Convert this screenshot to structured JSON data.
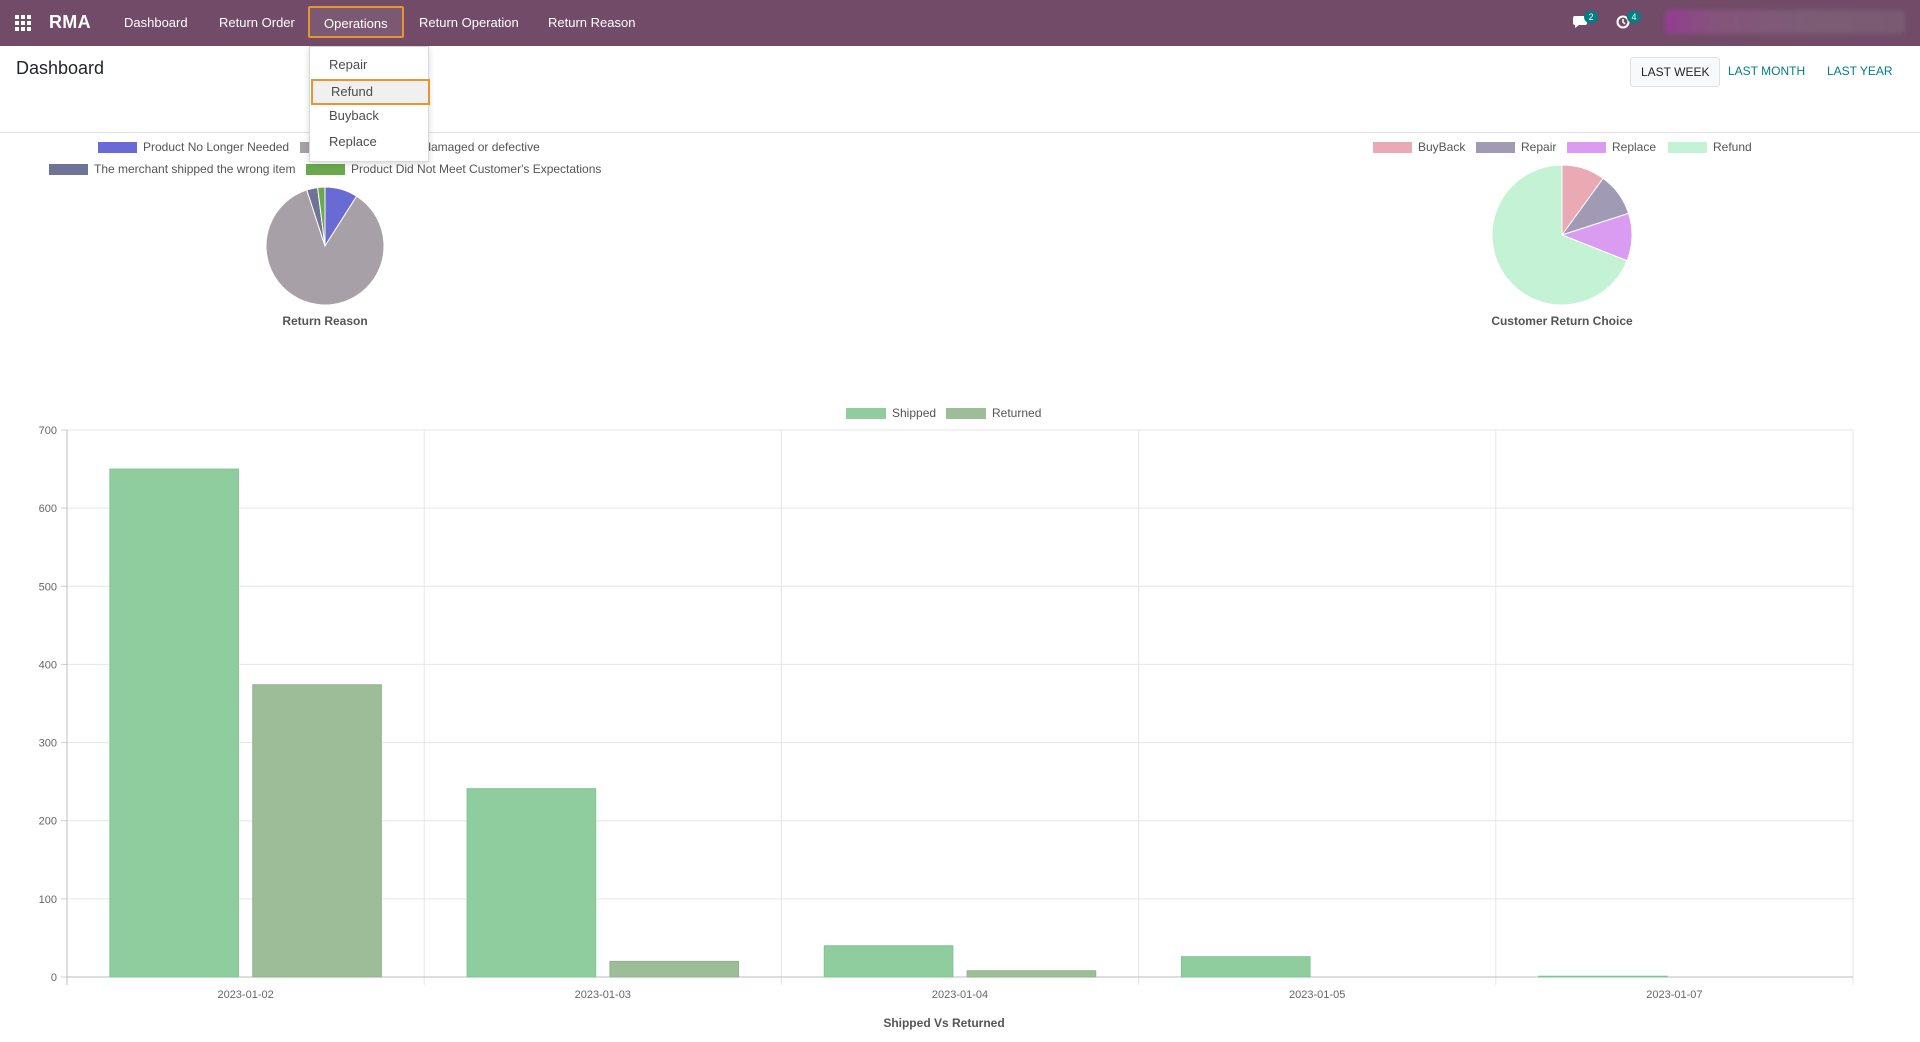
{
  "navbar": {
    "brand": "RMA",
    "items": [
      "Dashboard",
      "Return Order",
      "Operations",
      "Return Operation",
      "Return Reason"
    ],
    "messages_badge": "2",
    "activities_badge": "4"
  },
  "operations_menu": {
    "items": [
      "Repair",
      "Refund",
      "Buyback",
      "Replace"
    ],
    "highlighted": "Refund"
  },
  "control_panel": {
    "title": "Dashboard",
    "periods": [
      "LAST WEEK",
      "LAST MONTH",
      "LAST YEAR"
    ],
    "selected_period": "LAST WEEK"
  },
  "chart_data": [
    {
      "type": "pie",
      "title": "Return Reason",
      "legend": [
        {
          "label": "Product No Longer Needed",
          "color": "#6a6ad6"
        },
        {
          "label": "s damaged or defective",
          "color": "#a7a1a7"
        },
        {
          "label": "The merchant shipped the wrong item",
          "color": "#6f7396"
        },
        {
          "label": "Product Did Not Meet Customer's Expectations",
          "color": "#6aaa4e"
        }
      ],
      "values": [
        9,
        86,
        3,
        2
      ]
    },
    {
      "type": "pie",
      "title": "Customer Return Choice",
      "legend": [
        {
          "label": "BuyBack",
          "color": "#e9aab4"
        },
        {
          "label": "Repair",
          "color": "#a09ab4"
        },
        {
          "label": "Replace",
          "color": "#da9cf0"
        },
        {
          "label": "Refund",
          "color": "#c4f2d4"
        }
      ],
      "values": [
        10,
        10,
        11,
        69
      ]
    },
    {
      "type": "bar",
      "title": "Shipped Vs Returned",
      "categories": [
        "2023-01-02",
        "2023-01-03",
        "2023-01-04",
        "2023-01-05",
        "2023-01-07"
      ],
      "series": [
        {
          "name": "Shipped",
          "values": [
            650,
            241,
            40,
            26,
            1
          ],
          "color": "#8fcd9f"
        },
        {
          "name": "Returned",
          "values": [
            374,
            20,
            8,
            0,
            0
          ],
          "color": "#9dbd98"
        }
      ],
      "yticks": [
        0,
        100,
        200,
        300,
        400,
        500,
        600,
        700
      ],
      "ylim": [
        0,
        700
      ],
      "grid": true,
      "legend_position": "top"
    }
  ]
}
